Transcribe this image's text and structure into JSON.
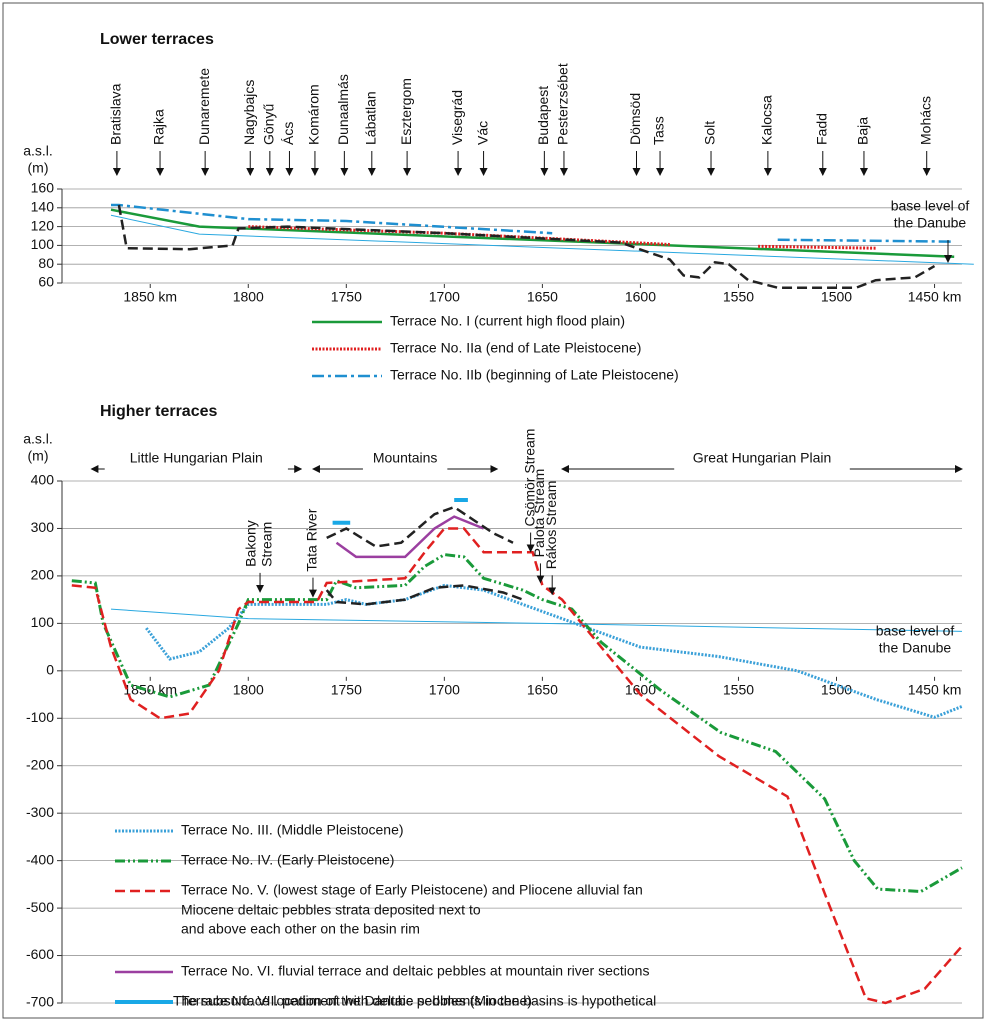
{
  "chart_data": [
    {
      "type": "line",
      "title": "Lower terraces",
      "y_label": [
        "a.s.l.",
        "(m)"
      ],
      "xlim": [
        1895,
        1436
      ],
      "ylim": [
        60,
        160
      ],
      "xticks": [
        {
          "value": 1850,
          "label": "1850 km"
        },
        1800,
        1750,
        1700,
        1650,
        1600,
        1550,
        1500,
        {
          "value": 1450,
          "label": "1450 km"
        }
      ],
      "yticks": [
        60,
        80,
        100,
        120,
        140,
        160
      ],
      "grid": true,
      "series": [
        {
          "name": "Terrace No. I (current high flood plain)",
          "color": "#1a9a3a",
          "style": "solid",
          "x": [
            1870,
            1825,
            1440
          ],
          "values": [
            138,
            120,
            88
          ]
        },
        {
          "name": "Terrace No. IIa (end of Late Pleistocene)",
          "color": "#e02020",
          "style": "dotted",
          "x": [
            1800,
            1700,
            1585,
            1540,
            1540,
            1480,
            1450,
            1440
          ],
          "values": [
            120,
            113,
            101,
            null,
            99,
            97,
            null,
            95
          ]
        },
        {
          "name": "Terrace No. IIb (beginning of Late Pleistocene)",
          "color": "#1f8fd0",
          "style": "dashdot",
          "x": [
            1870,
            1866,
            1800,
            1750,
            1645,
            1530,
            1530,
            1440
          ],
          "values": [
            143,
            143,
            128,
            126,
            113,
            null,
            106,
            104
          ]
        },
        {
          "color": "#29a8e0",
          "style": "thin",
          "x": [
            1870,
            1825,
            1430
          ],
          "values": [
            132,
            112,
            80
          ]
        },
        {
          "color": "#222222",
          "style": "dashed",
          "x": [
            1866,
            1862,
            1830,
            1808,
            1805,
            1780,
            1700,
            1610,
            1595,
            1585,
            1578,
            1570,
            1562,
            1555,
            1545,
            1530,
            1490,
            1480,
            1460,
            1450
          ],
          "values": [
            143,
            97,
            96,
            100,
            118,
            120,
            113,
            103,
            92,
            85,
            68,
            66,
            82,
            80,
            63,
            55,
            55,
            63,
            66,
            78
          ]
        }
      ],
      "places": [
        {
          "label": "Bratislava",
          "km": 1867
        },
        {
          "label": "Rajka",
          "km": 1845
        },
        {
          "label": "Dunaremete",
          "km": 1822
        },
        {
          "label": "Nagybajcs",
          "km": 1799
        },
        {
          "label": "Gönyű",
          "km": 1789
        },
        {
          "label": "Ács",
          "km": 1779
        },
        {
          "label": "Komárom",
          "km": 1766
        },
        {
          "label": "Dunaalmás",
          "km": 1751
        },
        {
          "label": "Lábatlan",
          "km": 1737
        },
        {
          "label": "Esztergom",
          "km": 1719
        },
        {
          "label": "Visegrád",
          "km": 1693
        },
        {
          "label": "Vác",
          "km": 1680
        },
        {
          "label": "Budapest",
          "km": 1649
        },
        {
          "label": "Pesterzsébet",
          "km": 1639
        },
        {
          "label": "Dömsöd",
          "km": 1602
        },
        {
          "label": "Tass",
          "km": 1590
        },
        {
          "label": "Solt",
          "km": 1564
        },
        {
          "label": "Kalocsa",
          "km": 1535
        },
        {
          "label": "Fadd",
          "km": 1507
        },
        {
          "label": "Baja",
          "km": 1486
        },
        {
          "label": "Mohács",
          "km": 1454
        }
      ],
      "base_label": [
        "base level of",
        "the Danube"
      ]
    },
    {
      "type": "line",
      "title": "Higher terraces",
      "y_label": [
        "a.s.l.",
        "(m)"
      ],
      "xlim": [
        1895,
        1436
      ],
      "ylim": [
        -700,
        400
      ],
      "xticks": [
        {
          "value": 1850,
          "label": "1850 km"
        },
        1800,
        1750,
        1700,
        1650,
        1600,
        1550,
        1500,
        {
          "value": 1450,
          "label": "1450 km"
        }
      ],
      "yticks": [
        -700,
        -600,
        -500,
        -400,
        -300,
        -200,
        -100,
        0,
        100,
        200,
        300,
        400
      ],
      "grid": true,
      "series": [
        {
          "name": "Terrace No. III. (Middle Pleistocene)",
          "color": "#3aa0d8",
          "style": "dotted",
          "x": [
            1852,
            1840,
            1825,
            1810,
            1800,
            1790,
            1760,
            1750,
            1740,
            1720,
            1700,
            1680,
            1660,
            1640,
            1620,
            1600,
            1560,
            1520,
            1480,
            1450,
            1436
          ],
          "values": [
            90,
            25,
            40,
            90,
            140,
            140,
            140,
            150,
            140,
            150,
            180,
            170,
            140,
            110,
            80,
            50,
            30,
            0,
            -60,
            -98,
            -75
          ]
        },
        {
          "name": "Terrace No. IV. (Early Pleistocene)",
          "color": "#1a9a3a",
          "style": "dashdotdot",
          "x": [
            1890,
            1878,
            1874,
            1860,
            1840,
            1820,
            1805,
            1800,
            1760,
            1755,
            1745,
            1720,
            1710,
            1700,
            1690,
            1680,
            1660,
            1650,
            1635,
            1620,
            1590,
            1559,
            1531,
            1506,
            1491,
            1479,
            1457,
            1436
          ],
          "values": [
            190,
            185,
            100,
            -30,
            -55,
            -30,
            100,
            150,
            150,
            190,
            175,
            180,
            220,
            245,
            240,
            195,
            170,
            150,
            130,
            60,
            -40,
            -130,
            -170,
            -270,
            -400,
            -460,
            -465,
            -415
          ]
        },
        {
          "name": "Terrace No. V. (lowest stage of Early Pleistocene) and Pliocene alluvial fan",
          "color": "#e02020",
          "style": "dashed",
          "x": [
            1890,
            1878,
            1870,
            1860,
            1845,
            1830,
            1815,
            1805,
            1800,
            1765,
            1760,
            1720,
            1710,
            1700,
            1690,
            1680,
            1655,
            1650,
            1640,
            1630,
            1600,
            1560,
            1525,
            1505,
            1485,
            1475,
            1455,
            1436
          ],
          "values": [
            180,
            175,
            50,
            -60,
            -100,
            -90,
            0,
            130,
            145,
            145,
            185,
            195,
            250,
            300,
            300,
            250,
            250,
            180,
            150,
            100,
            -50,
            -180,
            -265,
            -480,
            -690,
            -700,
            -670,
            -580
          ]
        },
        {
          "name": "Terrace No. VI. fluvial terrace and deltaic pebbles at mountain river sections",
          "color": "#9b3fa0",
          "style": "solid",
          "x": [
            1755,
            1745,
            1720,
            1705,
            1695,
            1680
          ],
          "values": [
            270,
            240,
            240,
            300,
            325,
            300
          ]
        },
        {
          "name": "Terrace No. VII. pediment with deltaic pebbles (Miocene)",
          "color": "#19a8e6",
          "style": "thick",
          "x": [
            1757,
            1748,
            1735,
            1725,
            1700,
            1695,
            1688
          ],
          "values": [
            312,
            312,
            null,
            270,
            null,
            360,
            360
          ]
        },
        {
          "color": "#29a8e0",
          "style": "thin",
          "x": [
            1870,
            1800,
            1650,
            1436
          ],
          "values": [
            130,
            110,
            100,
            83
          ]
        },
        {
          "color": "#222222",
          "style": "dashed",
          "x": [
            1760,
            1755,
            1740,
            1720,
            1705,
            1690,
            1670,
            1660
          ],
          "values": [
            170,
            145,
            140,
            150,
            175,
            180,
            165,
            150
          ]
        },
        {
          "color": "#222222",
          "style": "dashed",
          "x": [
            1760,
            1750,
            1735,
            1722,
            1705,
            1695,
            1675,
            1665
          ],
          "values": [
            280,
            300,
            262,
            270,
            330,
            345,
            290,
            270
          ]
        }
      ],
      "regions": [
        {
          "label": "Little Hungarian Plain",
          "from": 1880,
          "to": 1773
        },
        {
          "label": "Mountains",
          "from": 1767,
          "to": 1673
        },
        {
          "label": "Great Hungarian Plain",
          "from": 1640,
          "to": 1436
        }
      ],
      "streams": [
        {
          "lines": [
            "Bakony",
            "Stream"
          ],
          "km": 1794,
          "at": 160
        },
        {
          "lines": [
            "Tata River"
          ],
          "km": 1767,
          "at": 150
        },
        {
          "lines": [
            "Csömör Stream"
          ],
          "km": 1656,
          "at": 245
        },
        {
          "lines": [
            "Palota Stream"
          ],
          "km": 1651,
          "at": 180
        },
        {
          "lines": [
            "Rákos Stream"
          ],
          "km": 1645,
          "at": 155
        }
      ],
      "base_label": [
        "base level of",
        "the Danube"
      ],
      "legend_extra": [
        "Miocene deltaic pebbles strata deposited next to",
        "and above each other on the basin rim"
      ],
      "footnote": "The subsurface location of the Danube sediments in the basins is hypothetical"
    }
  ]
}
